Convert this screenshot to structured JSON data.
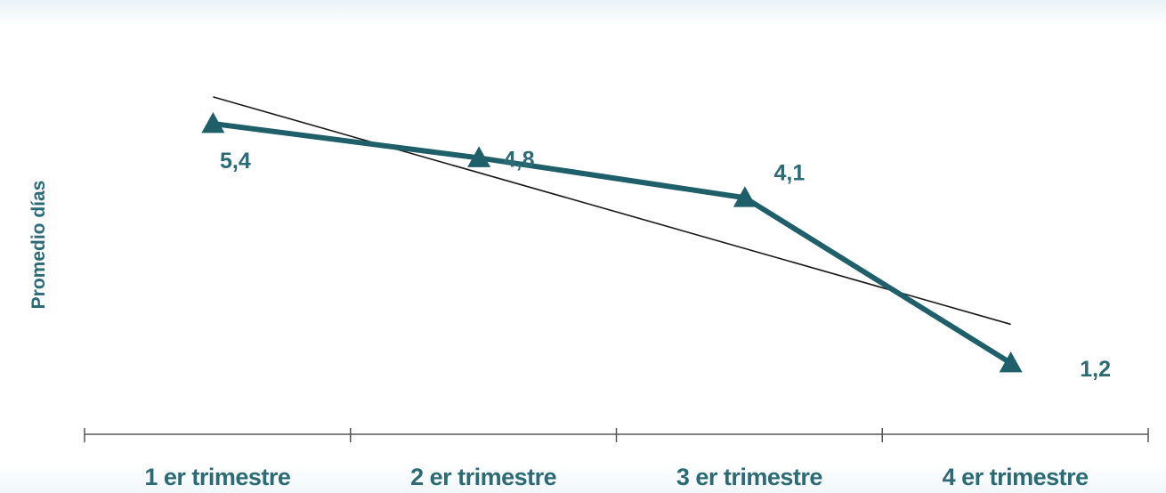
{
  "chart_data": {
    "type": "line",
    "title": "",
    "xlabel": "",
    "ylabel": "Promedio días",
    "categories": [
      "1 er trimestre",
      "2 er trimestre",
      "3 er trimestre",
      "4 er trimestre"
    ],
    "series": [
      {
        "values": [
          5.4,
          4.8,
          4.1,
          1.2
        ],
        "labels": [
          "5,4",
          "4,8",
          "4,1",
          "1,2"
        ],
        "color": "#1f5f69",
        "marker": "triangle"
      }
    ],
    "trendline": {
      "type": "linear",
      "color": "#1a1a1a"
    },
    "grid": false,
    "legend": "none",
    "y_axis_visible": false
  }
}
